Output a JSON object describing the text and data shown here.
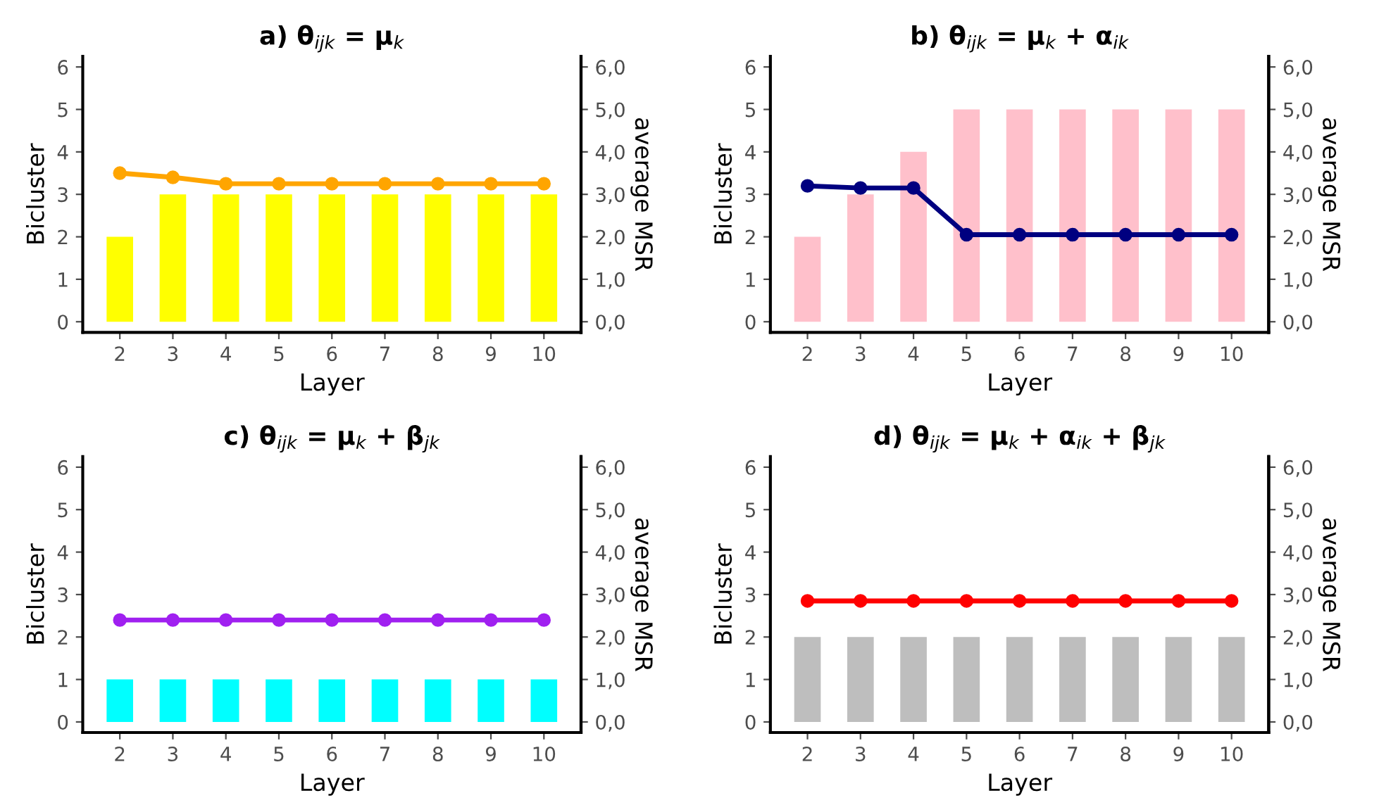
{
  "chart_data": [
    {
      "type": "bar",
      "title": "a) θ$_{ijk}$ = μ$_{k}$",
      "xlabel": "Layer",
      "ylabel": "Bicluster",
      "y2label": "average MSR",
      "categories": [
        "2",
        "3",
        "4",
        "5",
        "6",
        "7",
        "8",
        "9",
        "10"
      ],
      "ylim": [
        -0.25,
        6.25
      ],
      "yticks": [
        0,
        1,
        2,
        3,
        4,
        5,
        6
      ],
      "y2lim": [
        -0.25,
        6.25
      ],
      "y2ticks": [
        {
          "value": 0,
          "label": "0,0"
        },
        {
          "value": 1,
          "label": "1,0"
        },
        {
          "value": 2,
          "label": "2,0"
        },
        {
          "value": 3,
          "label": "3,0"
        },
        {
          "value": 4,
          "label": "4,0"
        },
        {
          "value": 5,
          "label": "5,0"
        },
        {
          "value": 6,
          "label": "6,0"
        }
      ],
      "marker": "circle",
      "grid": false,
      "series": [
        {
          "color": "#ffff00",
          "values": [
            2,
            3,
            3,
            3,
            3,
            3,
            3,
            3,
            3
          ]
        },
        {
          "type": "line",
          "axis": "y2",
          "color": "#ffa500",
          "values": [
            3.5,
            3.4,
            3.25,
            3.25,
            3.25,
            3.25,
            3.25,
            3.25,
            3.25
          ]
        }
      ]
    },
    {
      "type": "bar",
      "title": "b) θ$_{ijk}$ = μ$_{k}$ + α$_{ik}$",
      "xlabel": "Layer",
      "ylabel": "Bicluster",
      "y2label": "average MSR",
      "categories": [
        "2",
        "3",
        "4",
        "5",
        "6",
        "7",
        "8",
        "9",
        "10"
      ],
      "ylim": [
        -0.25,
        6.25
      ],
      "yticks": [
        0,
        1,
        2,
        3,
        4,
        5,
        6
      ],
      "y2lim": [
        -0.25,
        6.25
      ],
      "y2ticks": [
        {
          "value": 0,
          "label": "0,0"
        },
        {
          "value": 1,
          "label": "1,0"
        },
        {
          "value": 2,
          "label": "2,0"
        },
        {
          "value": 3,
          "label": "3,0"
        },
        {
          "value": 4,
          "label": "4,0"
        },
        {
          "value": 5,
          "label": "5,0"
        },
        {
          "value": 6,
          "label": "6,0"
        }
      ],
      "marker": "circle",
      "grid": false,
      "series": [
        {
          "color": "#ffc0cb",
          "values": [
            2,
            3,
            4,
            5,
            5,
            5,
            5,
            5,
            5
          ]
        },
        {
          "type": "line",
          "axis": "y2",
          "color": "#000080",
          "values": [
            3.2,
            3.15,
            3.15,
            2.05,
            2.05,
            2.05,
            2.05,
            2.05,
            2.05
          ]
        }
      ]
    },
    {
      "type": "bar",
      "title": "c) θ$_{ijk}$ = μ$_{k}$ + β$_{jk}$",
      "xlabel": "Layer",
      "ylabel": "Bicluster",
      "y2label": "average MSR",
      "categories": [
        "2",
        "3",
        "4",
        "5",
        "6",
        "7",
        "8",
        "9",
        "10"
      ],
      "ylim": [
        -0.25,
        6.25
      ],
      "yticks": [
        0,
        1,
        2,
        3,
        4,
        5,
        6
      ],
      "y2lim": [
        -0.25,
        6.25
      ],
      "y2ticks": [
        {
          "value": 0,
          "label": "0,0"
        },
        {
          "value": 1,
          "label": "1,0"
        },
        {
          "value": 2,
          "label": "2,0"
        },
        {
          "value": 3,
          "label": "3,0"
        },
        {
          "value": 4,
          "label": "4,0"
        },
        {
          "value": 5,
          "label": "5,0"
        },
        {
          "value": 6,
          "label": "6,0"
        }
      ],
      "marker": "circle",
      "grid": false,
      "series": [
        {
          "color": "#00ffff",
          "values": [
            1,
            1,
            1,
            1,
            1,
            1,
            1,
            1,
            1
          ]
        },
        {
          "type": "line",
          "axis": "y2",
          "color": "#a020f0",
          "values": [
            2.4,
            2.4,
            2.4,
            2.4,
            2.4,
            2.4,
            2.4,
            2.4,
            2.4
          ]
        }
      ]
    },
    {
      "type": "bar",
      "title": "d) θ$_{ijk}$ = μ$_{k}$ + α$_{ik}$ + β$_{jk}$",
      "xlabel": "Layer",
      "ylabel": "Bicluster",
      "y2label": "average MSR",
      "categories": [
        "2",
        "3",
        "4",
        "5",
        "6",
        "7",
        "8",
        "9",
        "10"
      ],
      "ylim": [
        -0.25,
        6.25
      ],
      "yticks": [
        0,
        1,
        2,
        3,
        4,
        5,
        6
      ],
      "y2lim": [
        -0.25,
        6.25
      ],
      "y2ticks": [
        {
          "value": 0,
          "label": "0,0"
        },
        {
          "value": 1,
          "label": "1,0"
        },
        {
          "value": 2,
          "label": "2,0"
        },
        {
          "value": 3,
          "label": "3,0"
        },
        {
          "value": 4,
          "label": "4,0"
        },
        {
          "value": 5,
          "label": "5,0"
        },
        {
          "value": 6,
          "label": "6,0"
        }
      ],
      "marker": "circle",
      "grid": false,
      "series": [
        {
          "color": "#bebebe",
          "values": [
            2,
            2,
            2,
            2,
            2,
            2,
            2,
            2,
            2
          ]
        },
        {
          "type": "line",
          "axis": "y2",
          "color": "#ff0000",
          "values": [
            2.85,
            2.85,
            2.85,
            2.85,
            2.85,
            2.85,
            2.85,
            2.85,
            2.85
          ]
        }
      ]
    }
  ]
}
